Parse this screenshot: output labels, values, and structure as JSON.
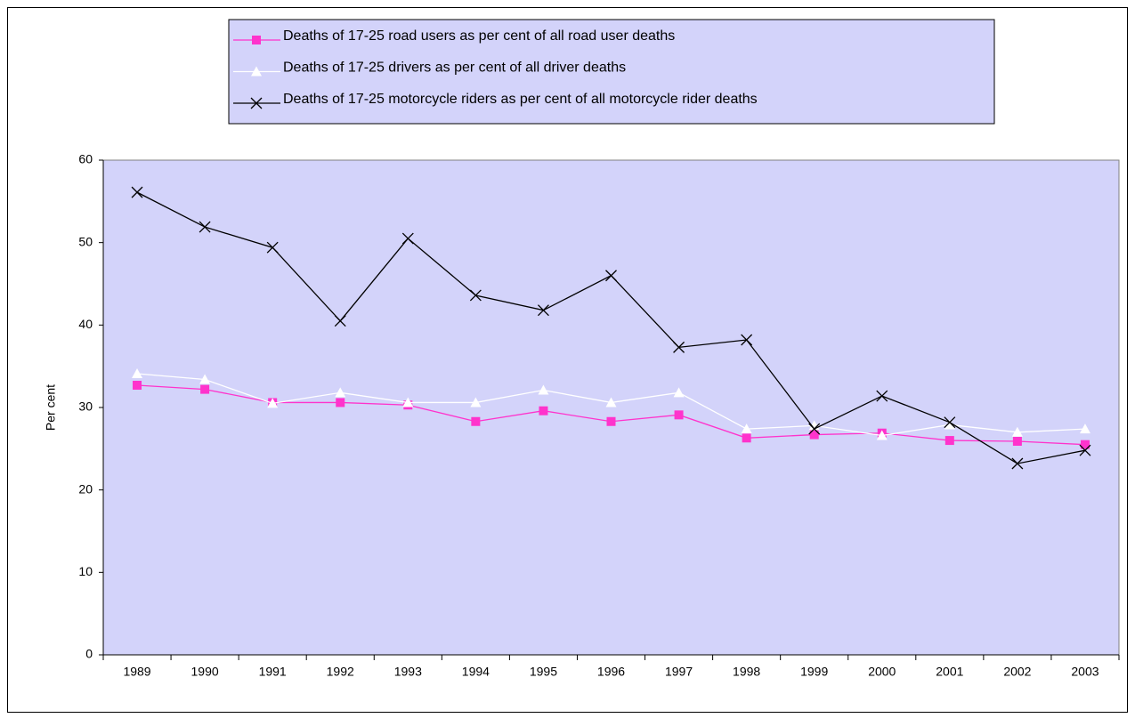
{
  "chart_data": {
    "type": "line",
    "ylabel": "Per cent",
    "categories": [
      "1989",
      "1990",
      "1991",
      "1992",
      "1993",
      "1994",
      "1995",
      "1996",
      "1997",
      "1998",
      "1999",
      "2000",
      "2001",
      "2002",
      "2003"
    ],
    "series": [
      {
        "name": "Deaths of 17-25 road users as per cent of all road user deaths",
        "color": "#ff33cc",
        "marker": "square",
        "values": [
          32.7,
          32.2,
          30.6,
          30.6,
          30.3,
          28.3,
          29.6,
          28.3,
          29.1,
          26.3,
          26.7,
          26.9,
          26.0,
          25.9,
          25.5
        ]
      },
      {
        "name": "Deaths of 17-25 drivers as per cent of all driver deaths",
        "color": "#ffffff",
        "marker": "triangle",
        "values": [
          34.1,
          33.4,
          30.5,
          31.8,
          30.6,
          30.6,
          32.1,
          30.6,
          31.8,
          27.4,
          27.8,
          26.6,
          27.9,
          27.0,
          27.4
        ]
      },
      {
        "name": "Deaths of 17-25 motorcycle riders as per cent of all motorcycle rider deaths",
        "color": "#000000",
        "marker": "x",
        "values": [
          56.1,
          51.9,
          49.4,
          40.5,
          50.5,
          43.6,
          41.8,
          46.0,
          37.3,
          38.2,
          27.4,
          31.4,
          28.2,
          23.2,
          24.8
        ]
      }
    ],
    "ylim": [
      0,
      60
    ],
    "yticks": [
      0,
      10,
      20,
      30,
      40,
      50,
      60
    ],
    "grid": false,
    "legend": "top",
    "background": "#d3d3fa"
  }
}
